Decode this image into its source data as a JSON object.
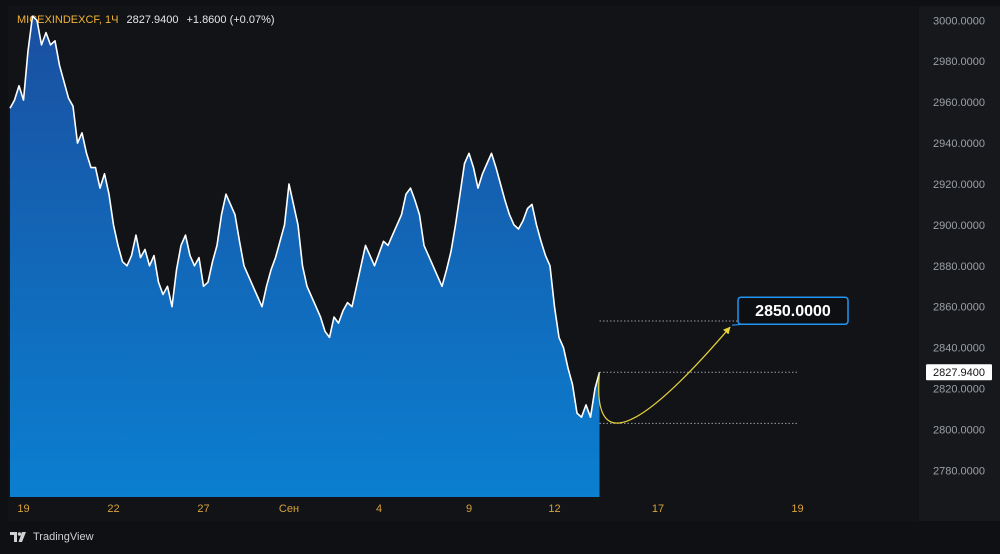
{
  "header": {
    "symbol": "MICEXINDEXCF, 1Ч",
    "price": "2827.9400",
    "change": "+1.8600 (+0.07%)"
  },
  "footer": {
    "brand": "TradingView"
  },
  "colors": {
    "line": "#ffffff",
    "area_top": "#1a4fa0",
    "area_bottom": "#0b7fd0",
    "forecast": "#e8d23a",
    "callout_border": "#2196f3",
    "tick_text": "#d7a23a",
    "grid": "#1c1d22"
  },
  "chart_data": {
    "type": "area",
    "title": "MICEXINDEXCF, 1Ч",
    "xlabel": "",
    "ylabel": "",
    "ylim": [
      2767,
      3007
    ],
    "x_index_range": [
      0,
      200
    ],
    "yticks": [
      "3000.0000",
      "2980.0000",
      "2960.0000",
      "2940.0000",
      "2920.0000",
      "2900.0000",
      "2880.0000",
      "2860.0000",
      "2840.0000",
      "2820.0000",
      "2800.0000",
      "2780.0000"
    ],
    "ytick_values": [
      3000,
      2980,
      2960,
      2940,
      2920,
      2900,
      2880,
      2860,
      2840,
      2820,
      2800,
      2780
    ],
    "xticks": [
      {
        "label": "19",
        "x": 3
      },
      {
        "label": "22",
        "x": 23
      },
      {
        "label": "27",
        "x": 43
      },
      {
        "label": "Сен",
        "x": 62
      },
      {
        "label": "4",
        "x": 82
      },
      {
        "label": "9",
        "x": 102
      },
      {
        "label": "12",
        "x": 121
      },
      {
        "label": "17",
        "x": 144
      },
      {
        "label": "19",
        "x": 175
      }
    ],
    "series": [
      {
        "values": [
          [
            0,
            2957
          ],
          [
            1,
            2961
          ],
          [
            2,
            2968
          ],
          [
            3,
            2961
          ],
          [
            4,
            2985
          ],
          [
            5,
            3002
          ],
          [
            6,
            3000
          ],
          [
            7,
            2988
          ],
          [
            8,
            2994
          ],
          [
            9,
            2988
          ],
          [
            10,
            2990
          ],
          [
            11,
            2978
          ],
          [
            12,
            2970
          ],
          [
            13,
            2962
          ],
          [
            14,
            2958
          ],
          [
            15,
            2940
          ],
          [
            16,
            2945
          ],
          [
            17,
            2935
          ],
          [
            18,
            2928
          ],
          [
            19,
            2928
          ],
          [
            20,
            2918
          ],
          [
            21,
            2925
          ],
          [
            22,
            2915
          ],
          [
            23,
            2900
          ],
          [
            24,
            2890
          ],
          [
            25,
            2882
          ],
          [
            26,
            2880
          ],
          [
            27,
            2885
          ],
          [
            28,
            2895
          ],
          [
            29,
            2884
          ],
          [
            30,
            2888
          ],
          [
            31,
            2880
          ],
          [
            32,
            2885
          ],
          [
            33,
            2872
          ],
          [
            34,
            2866
          ],
          [
            35,
            2870
          ],
          [
            36,
            2860
          ],
          [
            37,
            2878
          ],
          [
            38,
            2890
          ],
          [
            39,
            2895
          ],
          [
            40,
            2885
          ],
          [
            41,
            2880
          ],
          [
            42,
            2884
          ],
          [
            43,
            2870
          ],
          [
            44,
            2872
          ],
          [
            45,
            2882
          ],
          [
            46,
            2890
          ],
          [
            47,
            2905
          ],
          [
            48,
            2915
          ],
          [
            49,
            2910
          ],
          [
            50,
            2905
          ],
          [
            51,
            2892
          ],
          [
            52,
            2880
          ],
          [
            53,
            2875
          ],
          [
            54,
            2870
          ],
          [
            55,
            2865
          ],
          [
            56,
            2860
          ],
          [
            57,
            2870
          ],
          [
            58,
            2878
          ],
          [
            59,
            2884
          ],
          [
            60,
            2892
          ],
          [
            61,
            2900
          ],
          [
            62,
            2920
          ],
          [
            63,
            2910
          ],
          [
            64,
            2900
          ],
          [
            65,
            2880
          ],
          [
            66,
            2870
          ],
          [
            67,
            2865
          ],
          [
            68,
            2860
          ],
          [
            69,
            2855
          ],
          [
            70,
            2848
          ],
          [
            71,
            2845
          ],
          [
            72,
            2855
          ],
          [
            73,
            2852
          ],
          [
            74,
            2858
          ],
          [
            75,
            2862
          ],
          [
            76,
            2860
          ],
          [
            77,
            2870
          ],
          [
            78,
            2880
          ],
          [
            79,
            2890
          ],
          [
            80,
            2885
          ],
          [
            81,
            2880
          ],
          [
            82,
            2886
          ],
          [
            83,
            2892
          ],
          [
            84,
            2890
          ],
          [
            85,
            2895
          ],
          [
            86,
            2900
          ],
          [
            87,
            2905
          ],
          [
            88,
            2915
          ],
          [
            89,
            2918
          ],
          [
            90,
            2912
          ],
          [
            91,
            2905
          ],
          [
            92,
            2890
          ],
          [
            93,
            2885
          ],
          [
            94,
            2880
          ],
          [
            95,
            2875
          ],
          [
            96,
            2870
          ],
          [
            97,
            2878
          ],
          [
            98,
            2887
          ],
          [
            99,
            2900
          ],
          [
            100,
            2915
          ],
          [
            101,
            2930
          ],
          [
            102,
            2935
          ],
          [
            103,
            2928
          ],
          [
            104,
            2918
          ],
          [
            105,
            2925
          ],
          [
            106,
            2930
          ],
          [
            107,
            2935
          ],
          [
            108,
            2928
          ],
          [
            109,
            2920
          ],
          [
            110,
            2912
          ],
          [
            111,
            2905
          ],
          [
            112,
            2900
          ],
          [
            113,
            2898
          ],
          [
            114,
            2902
          ],
          [
            115,
            2908
          ],
          [
            116,
            2910
          ],
          [
            117,
            2900
          ],
          [
            118,
            2892
          ],
          [
            119,
            2885
          ],
          [
            120,
            2880
          ],
          [
            121,
            2860
          ],
          [
            122,
            2845
          ],
          [
            123,
            2840
          ],
          [
            124,
            2830
          ],
          [
            125,
            2822
          ],
          [
            126,
            2808
          ],
          [
            127,
            2806
          ],
          [
            128,
            2812
          ],
          [
            129,
            2806
          ],
          [
            130,
            2820
          ],
          [
            131,
            2828
          ]
        ]
      }
    ],
    "forecast": {
      "points": [
        [
          131,
          2828
        ],
        [
          137,
          2804
        ],
        [
          160,
          2850
        ]
      ],
      "label": "2850.0000",
      "levels": [
        2853,
        2828,
        2803
      ],
      "level_x_range": [
        131,
        175
      ]
    },
    "last_price_label": "2827.9400",
    "last_price_value": 2828,
    "grid": false,
    "legend": "none"
  }
}
